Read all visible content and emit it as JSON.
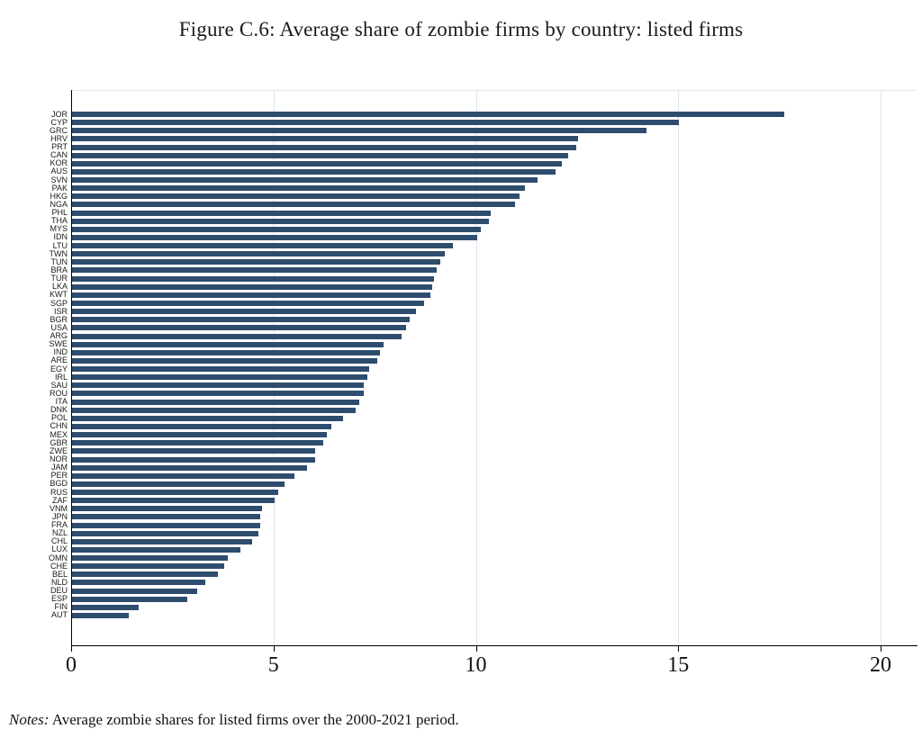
{
  "figure": {
    "title": "Figure C.6: Average share of zombie firms by country: listed firms",
    "notes_label": "Notes:",
    "notes_text": "Average zombie shares for listed firms over the 2000-2021 period."
  },
  "colors": {
    "bar": "#2e4d6e",
    "gridline": "#dde7ef",
    "axis": "#000000",
    "background": "#ffffff"
  },
  "chart_data": {
    "type": "bar",
    "orientation": "horizontal",
    "title": "Figure C.6: Average share of zombie firms by country: listed firms",
    "xlabel": "",
    "ylabel": "",
    "xticks": [
      0,
      5,
      10,
      15,
      20
    ],
    "xlim": [
      0,
      20.9
    ],
    "grid": "vertical-light",
    "legend": "none",
    "categories": [
      "JOR",
      "CYP",
      "GRC",
      "HRV",
      "PRT",
      "CAN",
      "KOR",
      "AUS",
      "SVN",
      "PAK",
      "HKG",
      "NGA",
      "PHL",
      "THA",
      "MYS",
      "IDN",
      "LTU",
      "TWN",
      "TUN",
      "BRA",
      "TUR",
      "LKA",
      "KWT",
      "SGP",
      "ISR",
      "BGR",
      "USA",
      "ARG",
      "SWE",
      "IND",
      "ARE",
      "EGY",
      "IRL",
      "SAU",
      "ROU",
      "ITA",
      "DNK",
      "POL",
      "CHN",
      "MEX",
      "GBR",
      "ZWE",
      "NOR",
      "JAM",
      "PER",
      "BGD",
      "RUS",
      "ZAF",
      "VNM",
      "JPN",
      "FRA",
      "NZL",
      "CHL",
      "LUX",
      "OMN",
      "CHE",
      "BEL",
      "NLD",
      "DEU",
      "ESP",
      "FIN",
      "AUT"
    ],
    "values": [
      17.6,
      15.0,
      14.2,
      12.5,
      12.45,
      12.25,
      12.1,
      11.95,
      11.5,
      11.2,
      11.05,
      10.95,
      10.35,
      10.3,
      10.1,
      10.0,
      9.4,
      9.2,
      9.1,
      9.0,
      8.95,
      8.9,
      8.85,
      8.7,
      8.5,
      8.35,
      8.25,
      8.15,
      7.7,
      7.6,
      7.55,
      7.35,
      7.3,
      7.2,
      7.2,
      7.1,
      7.0,
      6.7,
      6.4,
      6.3,
      6.2,
      6.0,
      6.0,
      5.8,
      5.5,
      5.25,
      5.1,
      5.0,
      4.7,
      4.65,
      4.65,
      4.6,
      4.45,
      4.15,
      3.85,
      3.75,
      3.6,
      3.3,
      3.1,
      2.85,
      1.65,
      1.4
    ],
    "notes": "Notes: Average zombie shares for listed firms over the 2000-2021 period."
  }
}
